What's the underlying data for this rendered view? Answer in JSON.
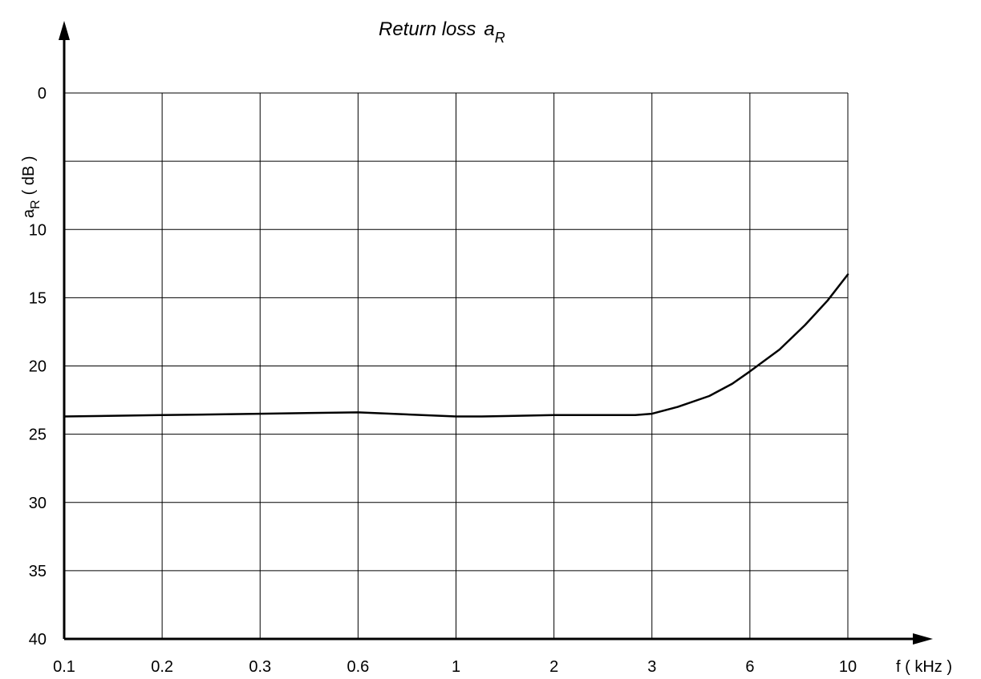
{
  "chart_data": {
    "type": "line",
    "title": "Return loss",
    "title_symbol": "a",
    "title_subscript": "R",
    "xlabel": "f ( kHz )",
    "ylabel": "a",
    "ylabel_subscript": "R",
    "ylabel_unit": "( dB )",
    "x_ticks": [
      "0.1",
      "0.2",
      "0.3",
      "0.6",
      "1",
      "2",
      "3",
      "6",
      "10"
    ],
    "y_ticks": [
      0,
      10,
      15,
      20,
      25,
      30,
      35,
      40
    ],
    "ylim": [
      0,
      40
    ],
    "y_inverted": true,
    "grid": true,
    "series": [
      {
        "x": [
          0.1,
          0.2,
          0.3,
          0.6,
          1,
          1.2,
          2,
          2.8,
          3,
          3.6,
          4.5,
          5.3,
          6,
          7,
          8,
          9,
          10
        ],
        "values": [
          23.7,
          23.6,
          23.5,
          23.4,
          23.7,
          23.7,
          23.6,
          23.6,
          23.5,
          23.0,
          22.2,
          21.3,
          20.4,
          18.8,
          17.0,
          15.2,
          13.3
        ]
      }
    ]
  }
}
